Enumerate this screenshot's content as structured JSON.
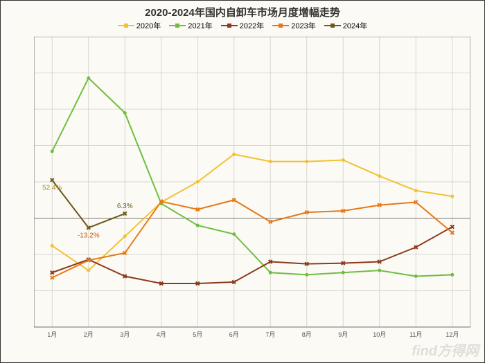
{
  "chart": {
    "type": "line",
    "title": "2020-2024年国内自卸车市场月度增幅走势",
    "title_fontsize": 15,
    "title_color": "#333333",
    "background_color": "#fcfaf5",
    "plot_bg_color": "#fcfaf5",
    "grid_color": "#d9d6cf",
    "axis_color": "#555555",
    "label_fontsize": 10,
    "tick_fontsize": 9,
    "x_categories": [
      "1月",
      "2月",
      "3月",
      "4月",
      "5月",
      "6月",
      "7月",
      "8月",
      "9月",
      "10月",
      "11月",
      "12月"
    ],
    "ylim": [
      -150,
      250
    ],
    "ytick_step": 50,
    "y_format": "percent",
    "line_width": 2,
    "marker_size": 5,
    "series": [
      {
        "name": "2020年",
        "color": "#f2c135",
        "marker": "circle",
        "values": [
          -38,
          -72,
          -25,
          22,
          50,
          88,
          78,
          78,
          80,
          58,
          38,
          30
        ]
      },
      {
        "name": "2021年",
        "color": "#6cbf3f",
        "marker": "circle",
        "values": [
          92,
          193,
          145,
          20,
          -10,
          -22,
          -75,
          -78,
          -75,
          -72,
          -80,
          -78
        ]
      },
      {
        "name": "2022年",
        "color": "#8b3a1e",
        "marker": "x",
        "values": [
          -75,
          -57,
          -80,
          -90,
          -90,
          -88,
          -60,
          -63,
          -62,
          -60,
          -40,
          -12
        ]
      },
      {
        "name": "2023年",
        "color": "#e67817",
        "marker": "x",
        "values": [
          -82,
          -58,
          -48,
          23,
          12,
          25,
          -5,
          8,
          10,
          18,
          22,
          -20
        ]
      },
      {
        "name": "2024年",
        "color": "#6b5a1a",
        "marker": "x",
        "values": [
          52.4,
          -13.2,
          6.3
        ]
      }
    ],
    "data_labels": [
      {
        "series": 4,
        "index": 0,
        "text": "52.4%",
        "color": "#b08a16",
        "dy": 14
      },
      {
        "series": 4,
        "index": 1,
        "text": "-13.2%",
        "color": "#c25a12",
        "dy": 14
      },
      {
        "series": 4,
        "index": 2,
        "text": "6.3%",
        "color": "#6b5a1a",
        "dy": -8
      }
    ],
    "legend_position": "top"
  },
  "watermark": "find方得网"
}
